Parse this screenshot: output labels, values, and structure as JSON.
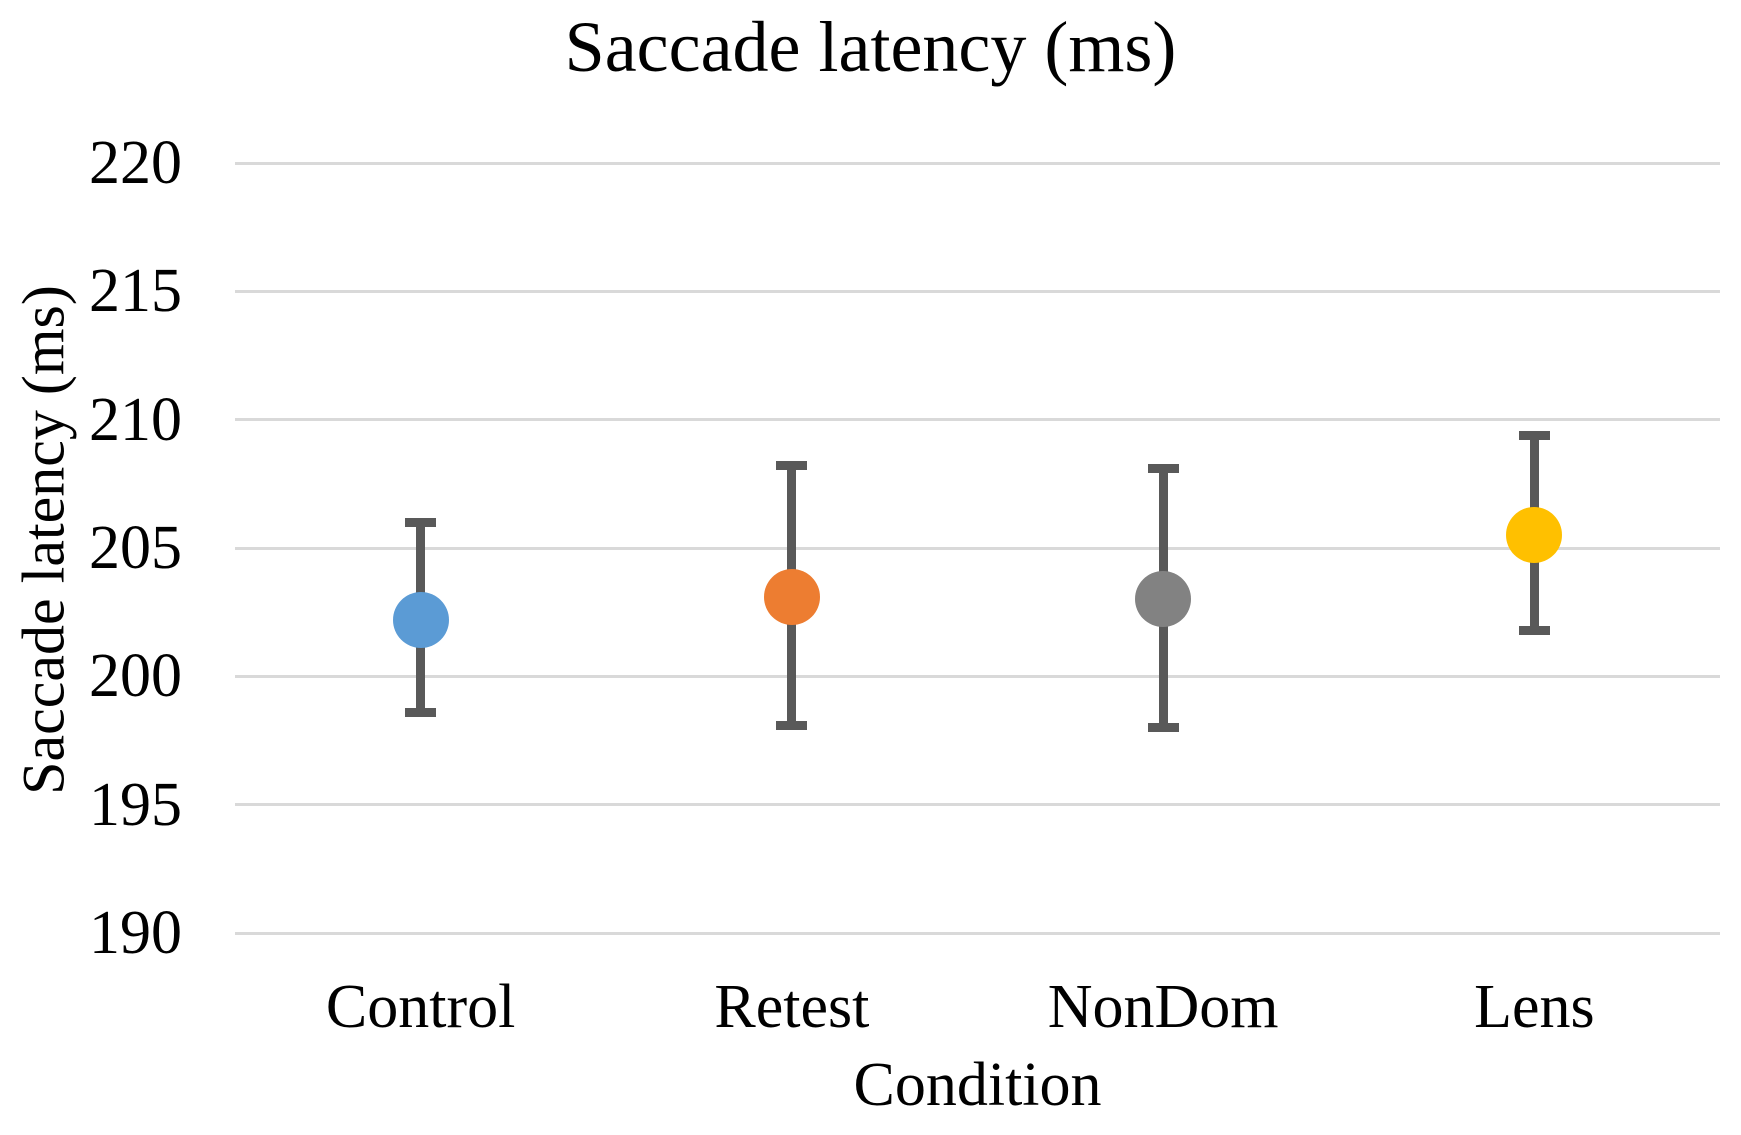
{
  "chart_data": {
    "type": "scatter",
    "title": "Saccade latency (ms)",
    "xlabel": "Condition",
    "ylabel": "Saccade latency (ms)",
    "categories": [
      "Control",
      "Retest",
      "NonDom",
      "Lens"
    ],
    "values": [
      202.2,
      203.1,
      203.0,
      205.5
    ],
    "error_upper": [
      206.0,
      208.2,
      208.1,
      209.4
    ],
    "error_lower": [
      198.6,
      198.1,
      198.0,
      201.8
    ],
    "point_colors": [
      "#5B9BD5",
      "#ED7D31",
      "#828282",
      "#FFC000"
    ],
    "ylim": [
      190,
      220
    ],
    "yticks": [
      220,
      215,
      210,
      205,
      200,
      195,
      190
    ],
    "grid": true,
    "gridline_color": "#D9D9D9",
    "error_bar_color": "#595959",
    "legend": "none"
  }
}
